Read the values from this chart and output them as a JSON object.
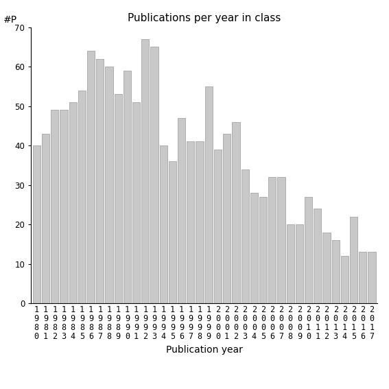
{
  "title": "Publications per year in class",
  "xlabel": "Publication year",
  "ylabel": "#P",
  "years": [
    1980,
    1981,
    1982,
    1983,
    1984,
    1985,
    1986,
    1987,
    1988,
    1989,
    1990,
    1991,
    1992,
    1993,
    1994,
    1995,
    1996,
    1997,
    1998,
    1999,
    2000,
    2001,
    2002,
    2003,
    2004,
    2005,
    2006,
    2007,
    2008,
    2009,
    2010,
    2011,
    2012,
    2013,
    2014,
    2015,
    2016,
    2017
  ],
  "values": [
    40,
    43,
    49,
    49,
    51,
    54,
    64,
    62,
    60,
    53,
    59,
    51,
    67,
    65,
    40,
    36,
    47,
    41,
    41,
    55,
    39,
    43,
    46,
    34,
    28,
    27,
    32,
    32,
    20,
    20,
    27,
    24,
    18,
    16,
    12,
    22,
    13,
    13
  ],
  "bar_color": "#c8c8c8",
  "bar_edgecolor": "#999999",
  "ylim": [
    0,
    70
  ],
  "yticks": [
    0,
    10,
    20,
    30,
    40,
    50,
    60,
    70
  ],
  "bg_color": "#ffffff",
  "title_fontsize": 11,
  "label_fontsize": 10,
  "tick_fontsize": 8.5
}
